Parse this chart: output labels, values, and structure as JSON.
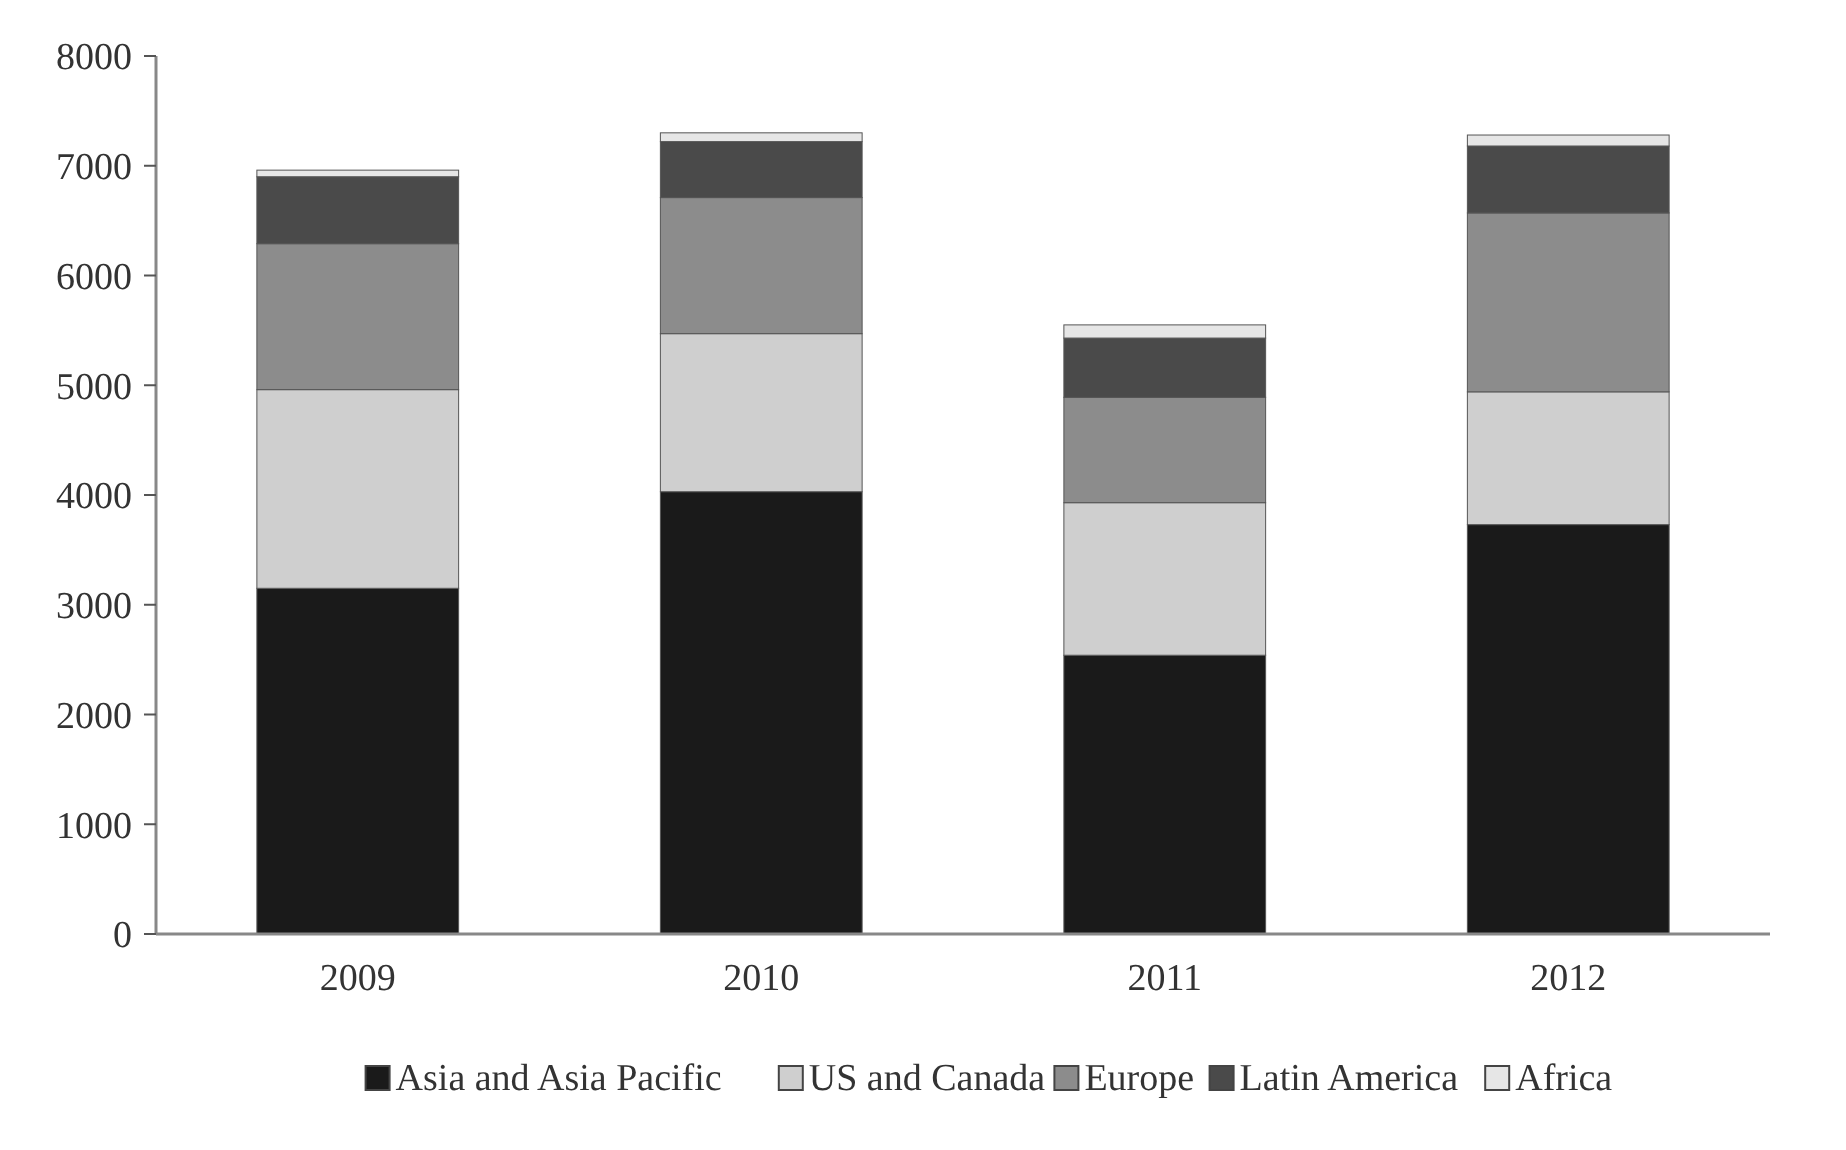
{
  "chart_data": {
    "type": "bar",
    "stacked": true,
    "categories": [
      "2009",
      "2010",
      "2011",
      "2012"
    ],
    "series": [
      {
        "name": "Asia and Asia Pacific",
        "color": "#1a1a1a",
        "values": [
          3150,
          4030,
          2540,
          3730
        ]
      },
      {
        "name": "US and Canada",
        "color": "#cfcfcf",
        "values": [
          1810,
          1440,
          1390,
          1210
        ]
      },
      {
        "name": "Europe",
        "color": "#8c8c8c",
        "values": [
          1330,
          1240,
          960,
          1630
        ]
      },
      {
        "name": "Latin America",
        "color": "#4a4a4a",
        "values": [
          610,
          510,
          540,
          610
        ]
      },
      {
        "name": "Africa",
        "color": "#e6e6e6",
        "values": [
          60,
          80,
          120,
          100
        ]
      }
    ],
    "ylim": [
      0,
      8000
    ],
    "yticks": [
      0,
      1000,
      2000,
      3000,
      4000,
      5000,
      6000,
      7000,
      8000
    ],
    "grid": false,
    "legend": "bottom"
  }
}
